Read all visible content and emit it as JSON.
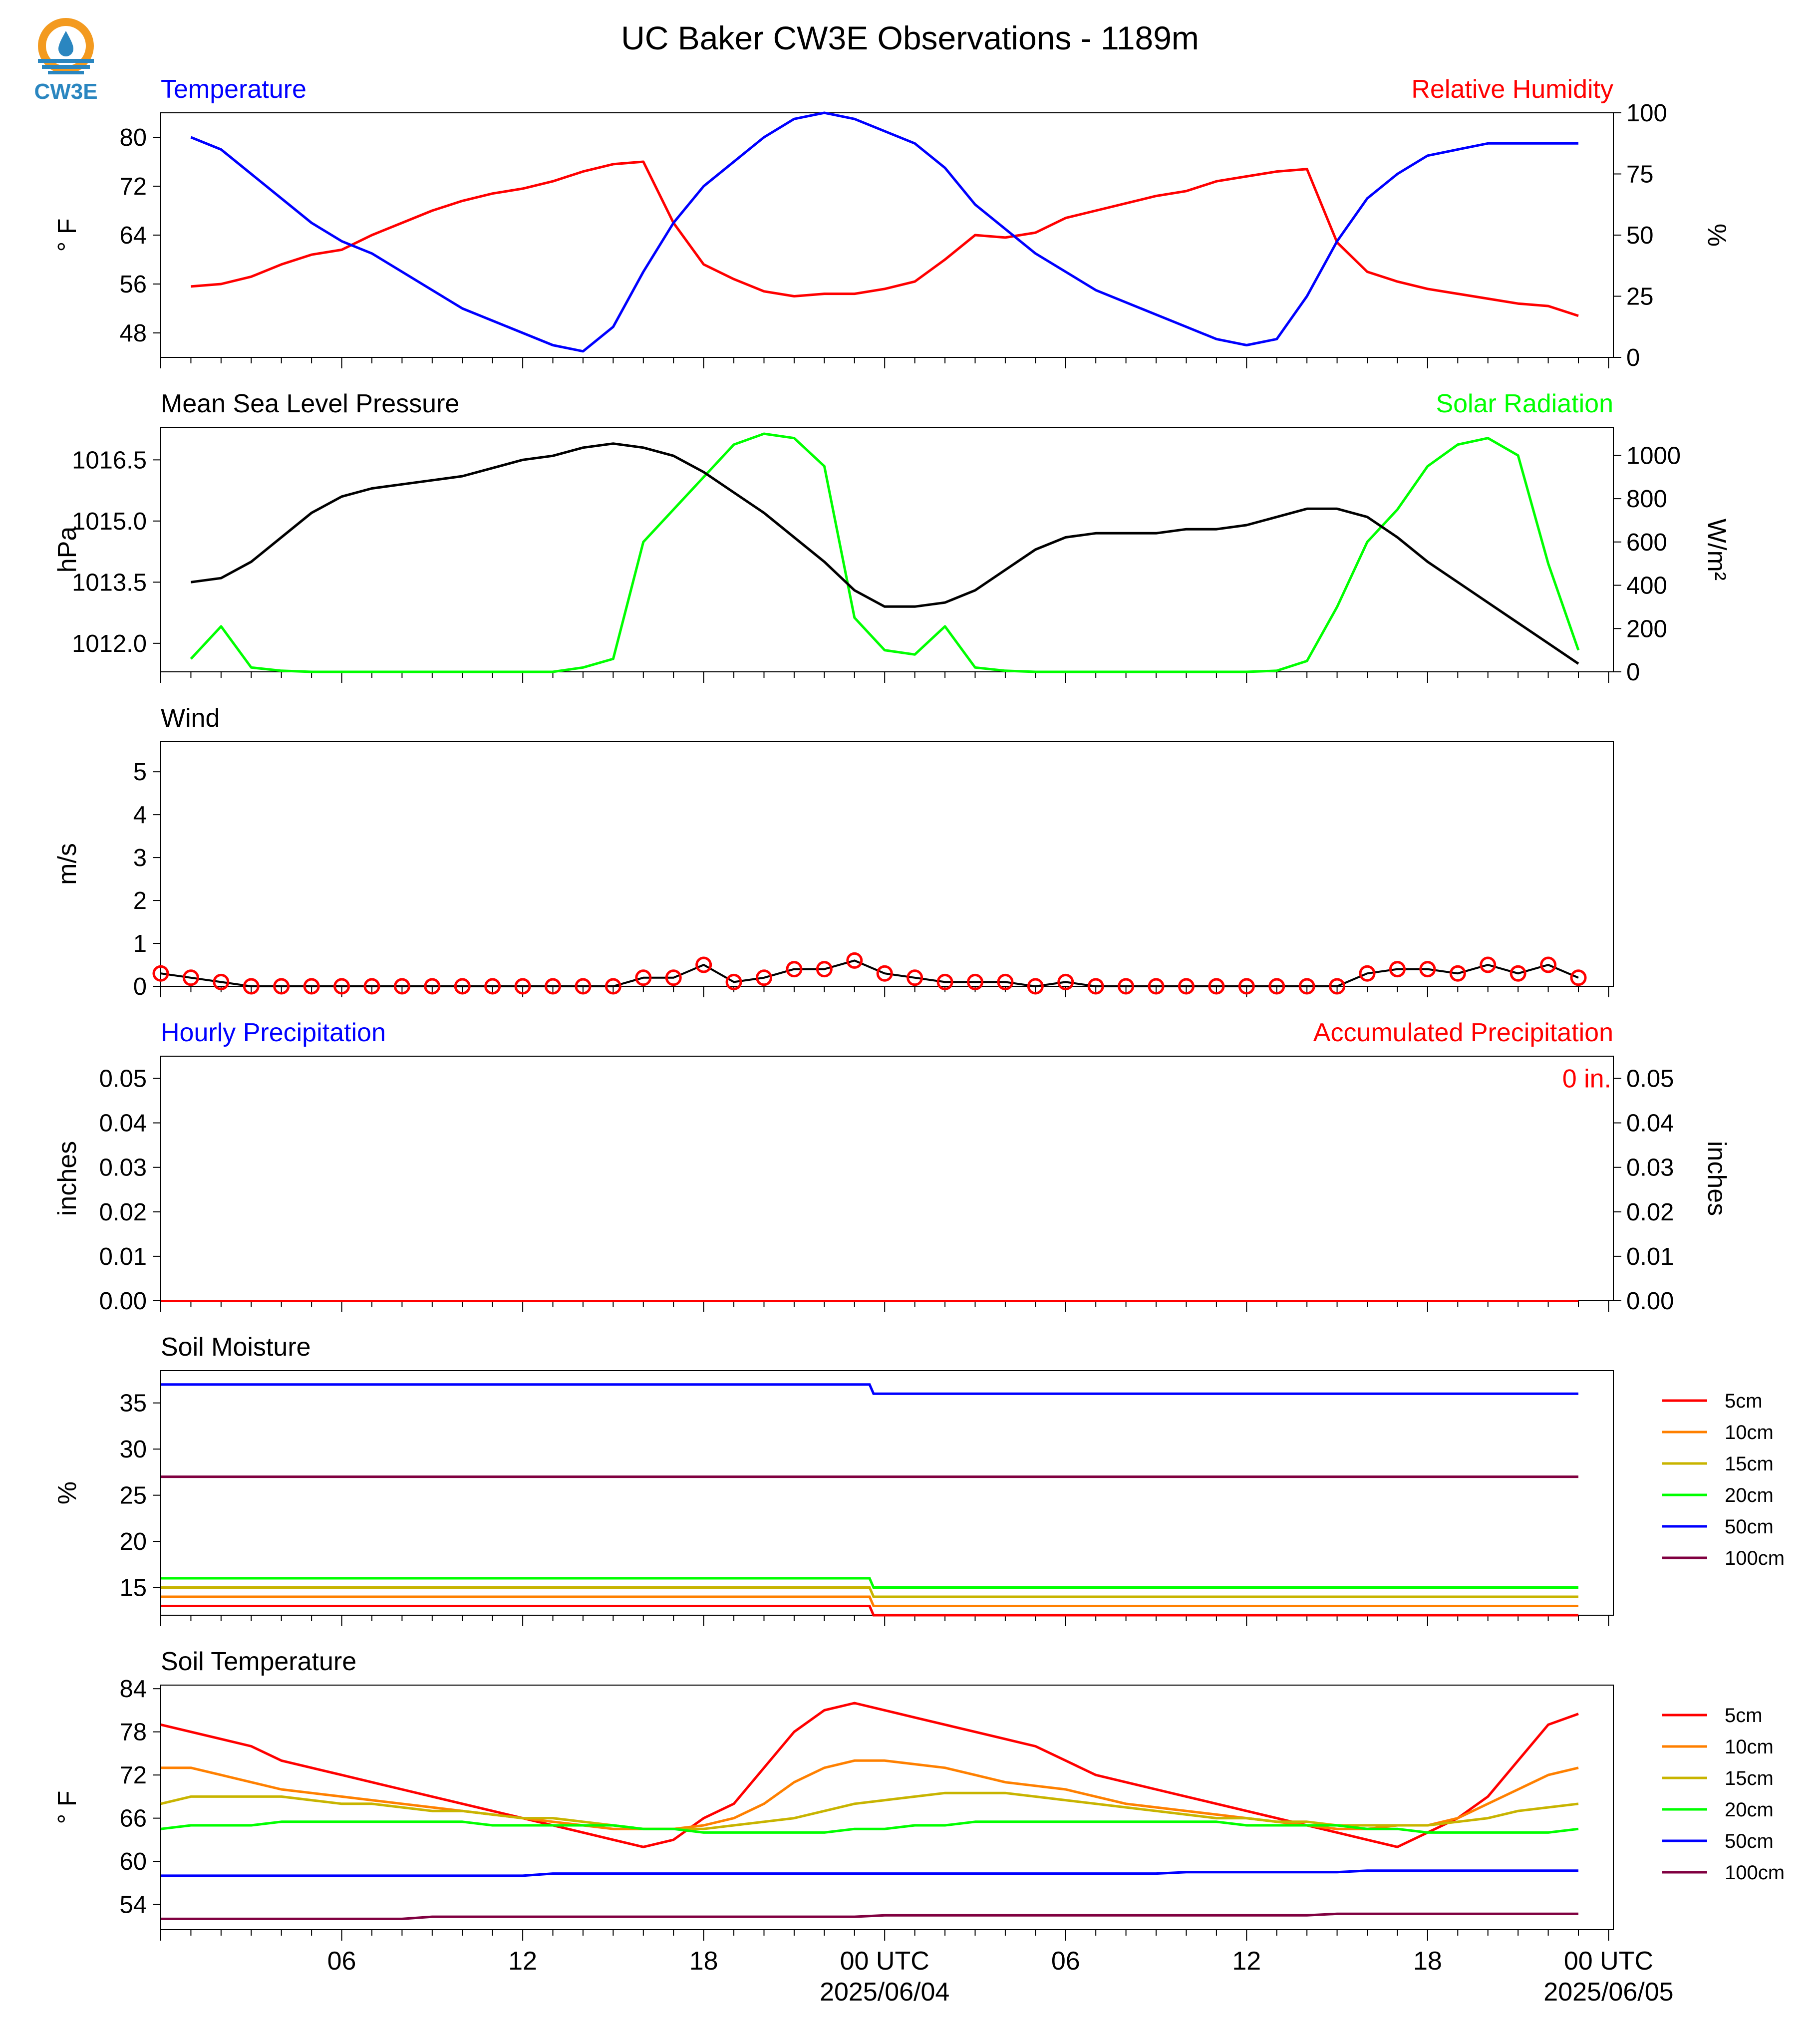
{
  "title": "UC Baker CW3E Observations - 1189m",
  "logo": {
    "text": "CW3E",
    "icon": "cw3e-water-drop-icon",
    "colors": [
      "#F39A1F",
      "#2A86C0"
    ]
  },
  "colors": {
    "temperature": "#0000FF",
    "relative_humidity": "#FF0000",
    "pressure": "#000000",
    "solar_radiation": "#00FF00",
    "wind_line": "#000000",
    "wind_markers": "#FF0000",
    "hourly_precip": "#0000FF",
    "accum_precip": "#FF0000",
    "depths": {
      "5cm": "#FF0000",
      "10cm": "#FF8000",
      "15cm": "#C8B400",
      "20cm": "#00FF00",
      "50cm": "#0000FF",
      "100cm": "#800040"
    }
  },
  "panels": {
    "temperature": {
      "left_title": "Temperature",
      "right_title": "Relative Humidity",
      "left_ylabel": "° F",
      "right_ylabel": "%",
      "left_ticks": [
        "48",
        "56",
        "64",
        "72",
        "80"
      ],
      "right_ticks": [
        "0",
        "25",
        "50",
        "75",
        "100"
      ]
    },
    "pressure": {
      "left_title": "Mean Sea Level Pressure",
      "right_title": "Solar Radiation",
      "left_ylabel": "hPa",
      "right_ylabel": "W/m²",
      "left_ticks": [
        "1012.0",
        "1013.5",
        "1015.0",
        "1016.5"
      ],
      "right_ticks": [
        "0",
        "200",
        "400",
        "600",
        "800",
        "1000"
      ]
    },
    "wind": {
      "left_title": "Wind",
      "left_ylabel": "m/s",
      "left_ticks": [
        "0",
        "1",
        "2",
        "3",
        "4",
        "5"
      ]
    },
    "precip": {
      "left_title": "Hourly Precipitation",
      "right_title": "Accumulated Precipitation",
      "left_ylabel": "inches",
      "right_ylabel": "inches",
      "annotation": "0 in.",
      "left_ticks": [
        "0.00",
        "0.01",
        "0.02",
        "0.03",
        "0.04",
        "0.05"
      ],
      "right_ticks": [
        "0.00",
        "0.01",
        "0.02",
        "0.03",
        "0.04",
        "0.05"
      ]
    },
    "soil_moisture": {
      "left_title": "Soil Moisture",
      "left_ylabel": "%",
      "left_ticks": [
        "15",
        "20",
        "25",
        "30",
        "35"
      ],
      "legend": [
        "5cm",
        "10cm",
        "15cm",
        "20cm",
        "50cm",
        "100cm"
      ]
    },
    "soil_temp": {
      "left_title": "Soil Temperature",
      "left_ylabel": "° F",
      "left_ticks": [
        "54",
        "60",
        "66",
        "72",
        "78",
        "84"
      ],
      "legend": [
        "5cm",
        "10cm",
        "15cm",
        "20cm",
        "50cm",
        "100cm"
      ]
    }
  },
  "x_axis": {
    "tick_labels": [
      "06",
      "12",
      "18",
      "00 UTC",
      "06",
      "12",
      "18",
      "00 UTC"
    ],
    "date_labels": [
      "2025/06/04",
      "2025/06/05"
    ]
  },
  "chart_data": [
    {
      "type": "line",
      "name": "temperature_rh",
      "x": [
        1,
        2,
        3,
        4,
        5,
        6,
        7,
        8,
        9,
        10,
        11,
        12,
        13,
        14,
        15,
        16,
        17,
        18,
        19,
        20,
        21,
        22,
        23,
        24,
        25,
        26,
        27,
        28,
        29,
        30,
        31,
        32,
        33,
        34,
        35,
        36,
        37,
        38,
        39,
        40,
        41,
        42,
        43,
        44,
        45,
        46,
        47
      ],
      "series": [
        {
          "name": "Temperature",
          "axis": "left",
          "values": [
            80,
            78,
            74,
            70,
            66,
            63,
            61,
            58,
            55,
            52,
            50,
            48,
            46,
            45,
            49,
            58,
            66,
            72,
            76,
            80,
            83,
            84,
            83,
            81,
            79,
            75,
            69,
            65,
            61,
            58,
            55,
            53,
            51,
            49,
            47,
            46,
            47,
            54,
            63,
            70,
            74,
            77,
            78,
            79,
            79,
            79,
            79
          ]
        },
        {
          "name": "Relative Humidity",
          "axis": "right",
          "values": [
            29,
            30,
            33,
            38,
            42,
            44,
            50,
            55,
            60,
            64,
            67,
            69,
            72,
            76,
            79,
            80,
            55,
            38,
            32,
            27,
            25,
            26,
            26,
            28,
            31,
            40,
            50,
            49,
            51,
            57,
            60,
            63,
            66,
            68,
            72,
            74,
            76,
            77,
            47,
            35,
            31,
            28,
            26,
            24,
            22,
            21,
            17
          ]
        }
      ],
      "ylim_left": [
        44,
        84
      ],
      "ylim_right": [
        0,
        100
      ]
    },
    {
      "type": "line",
      "name": "pressure_solar",
      "x": [
        1,
        2,
        3,
        4,
        5,
        6,
        7,
        8,
        9,
        10,
        11,
        12,
        13,
        14,
        15,
        16,
        17,
        18,
        19,
        20,
        21,
        22,
        23,
        24,
        25,
        26,
        27,
        28,
        29,
        30,
        31,
        32,
        33,
        34,
        35,
        36,
        37,
        38,
        39,
        40,
        41,
        42,
        43,
        44,
        45,
        46,
        47
      ],
      "series": [
        {
          "name": "Mean Sea Level Pressure",
          "axis": "left",
          "values": [
            1013.5,
            1013.6,
            1014.0,
            1014.6,
            1015.2,
            1015.6,
            1015.8,
            1015.9,
            1016.0,
            1016.1,
            1016.3,
            1016.5,
            1016.6,
            1016.8,
            1016.9,
            1016.8,
            1016.6,
            1016.2,
            1015.7,
            1015.2,
            1014.6,
            1014.0,
            1013.3,
            1012.9,
            1012.9,
            1013.0,
            1013.3,
            1013.8,
            1014.3,
            1014.6,
            1014.7,
            1014.7,
            1014.7,
            1014.8,
            1014.8,
            1014.9,
            1015.1,
            1015.3,
            1015.3,
            1015.1,
            1014.6,
            1014.0,
            1013.5,
            1013.0,
            1012.5,
            1012.0,
            1011.5
          ]
        },
        {
          "name": "Solar Radiation",
          "axis": "right",
          "values": [
            60,
            210,
            20,
            5,
            0,
            0,
            0,
            0,
            0,
            0,
            0,
            0,
            0,
            20,
            60,
            600,
            750,
            900,
            1050,
            1100,
            1080,
            950,
            250,
            100,
            80,
            210,
            20,
            5,
            0,
            0,
            0,
            0,
            0,
            0,
            0,
            0,
            5,
            50,
            300,
            600,
            750,
            950,
            1050,
            1080,
            1000,
            500,
            100
          ]
        }
      ],
      "ylim_left": [
        1011.3,
        1017.3
      ],
      "ylim_right": [
        0,
        1130
      ]
    },
    {
      "type": "line",
      "name": "wind",
      "x": [
        0,
        1,
        2,
        3,
        4,
        5,
        6,
        7,
        8,
        9,
        10,
        11,
        12,
        13,
        14,
        15,
        16,
        17,
        18,
        19,
        20,
        21,
        22,
        23,
        24,
        25,
        26,
        27,
        28,
        29,
        30,
        31,
        32,
        33,
        34,
        35,
        36,
        37,
        38,
        39,
        40,
        41,
        42,
        43,
        44,
        45,
        46,
        47
      ],
      "series": [
        {
          "name": "Wind",
          "axis": "left",
          "values": [
            0.3,
            0.2,
            0.1,
            0.0,
            0.0,
            0.0,
            0.0,
            0.0,
            0.0,
            0.0,
            0.0,
            0.0,
            0.0,
            0.0,
            0.0,
            0.0,
            0.2,
            0.2,
            0.5,
            0.1,
            0.2,
            0.4,
            0.4,
            0.6,
            0.3,
            0.2,
            0.1,
            0.1,
            0.1,
            0.0,
            0.1,
            0.0,
            0.0,
            0.0,
            0.0,
            0.0,
            0.0,
            0.0,
            0.0,
            0.0,
            0.3,
            0.4,
            0.4,
            0.3,
            0.5,
            0.3,
            0.5,
            0.2
          ]
        }
      ],
      "ylim": [
        0,
        5.7
      ]
    },
    {
      "type": "line",
      "name": "precipitation",
      "x": [
        0,
        47
      ],
      "series": [
        {
          "name": "Hourly Precipitation",
          "axis": "left",
          "values": [
            0,
            0
          ]
        },
        {
          "name": "Accumulated Precipitation",
          "axis": "right",
          "values": [
            0,
            0
          ]
        }
      ],
      "ylim": [
        0,
        0.055
      ]
    },
    {
      "type": "line",
      "name": "soil_moisture",
      "x": [
        0,
        47
      ],
      "series": [
        {
          "name": "5cm",
          "values": [
            13,
            12
          ]
        },
        {
          "name": "10cm",
          "values": [
            14,
            13
          ]
        },
        {
          "name": "15cm",
          "values": [
            15,
            14
          ]
        },
        {
          "name": "20cm",
          "values": [
            16,
            15
          ]
        },
        {
          "name": "50cm",
          "values": [
            37,
            36
          ]
        },
        {
          "name": "100cm",
          "values": [
            27,
            27
          ]
        }
      ],
      "ylim": [
        12,
        38.5
      ]
    },
    {
      "type": "line",
      "name": "soil_temperature",
      "x": [
        0,
        1,
        2,
        3,
        4,
        5,
        6,
        7,
        8,
        9,
        10,
        11,
        12,
        13,
        14,
        15,
        16,
        17,
        18,
        19,
        20,
        21,
        22,
        23,
        24,
        25,
        26,
        27,
        28,
        29,
        30,
        31,
        32,
        33,
        34,
        35,
        36,
        37,
        38,
        39,
        40,
        41,
        42,
        43,
        44,
        45,
        46,
        47
      ],
      "series": [
        {
          "name": "5cm",
          "values": [
            79,
            78,
            77,
            76,
            74,
            73,
            72,
            71,
            70,
            69,
            68,
            67,
            66,
            65,
            64,
            63,
            62,
            63,
            66,
            68,
            73,
            78,
            81,
            82,
            81,
            80,
            79,
            78,
            77,
            76,
            74,
            72,
            71,
            70,
            69,
            68,
            67,
            66,
            65,
            64,
            63,
            62,
            64,
            66,
            69,
            74,
            79,
            80.5
          ]
        },
        {
          "name": "10cm",
          "values": [
            73,
            73,
            72,
            71,
            70,
            69.5,
            69,
            68.5,
            68,
            67.5,
            67,
            66.5,
            66,
            65.5,
            65,
            64.5,
            64.5,
            64.5,
            65,
            66,
            68,
            71,
            73,
            74,
            74,
            73.5,
            73,
            72,
            71,
            70.5,
            70,
            69,
            68,
            67.5,
            67,
            66.5,
            66,
            65.5,
            65,
            64.5,
            64.5,
            65,
            65,
            66,
            68,
            70,
            72,
            73
          ]
        },
        {
          "name": "15cm",
          "values": [
            68,
            69,
            69,
            69,
            69,
            68.5,
            68,
            68,
            67.5,
            67,
            67,
            66.5,
            66,
            66,
            65.5,
            65,
            64.5,
            64.5,
            64.5,
            65,
            65.5,
            66,
            67,
            68,
            68.5,
            69,
            69.5,
            69.5,
            69.5,
            69,
            68.5,
            68,
            67.5,
            67,
            66.5,
            66,
            66,
            65.5,
            65.5,
            65,
            65,
            65,
            65,
            65.5,
            66,
            67,
            67.5,
            68
          ]
        },
        {
          "name": "20cm",
          "values": [
            64.5,
            65,
            65,
            65,
            65.5,
            65.5,
            65.5,
            65.5,
            65.5,
            65.5,
            65.5,
            65,
            65,
            65,
            65,
            65,
            64.5,
            64.5,
            64,
            64,
            64,
            64,
            64,
            64.5,
            64.5,
            65,
            65,
            65.5,
            65.5,
            65.5,
            65.5,
            65.5,
            65.5,
            65.5,
            65.5,
            65.5,
            65,
            65,
            65,
            65,
            64.5,
            64.5,
            64,
            64,
            64,
            64,
            64,
            64.5
          ]
        },
        {
          "name": "50cm",
          "values": [
            58,
            58,
            58,
            58,
            58,
            58,
            58,
            58,
            58,
            58,
            58,
            58,
            58,
            58.3,
            58.3,
            58.3,
            58.3,
            58.3,
            58.3,
            58.3,
            58.3,
            58.3,
            58.3,
            58.3,
            58.3,
            58.3,
            58.3,
            58.3,
            58.3,
            58.3,
            58.3,
            58.3,
            58.3,
            58.3,
            58.5,
            58.5,
            58.5,
            58.5,
            58.5,
            58.5,
            58.7,
            58.7,
            58.7,
            58.7,
            58.7,
            58.7,
            58.7,
            58.7
          ]
        },
        {
          "name": "100cm",
          "values": [
            52,
            52,
            52,
            52,
            52,
            52,
            52,
            52,
            52,
            52.3,
            52.3,
            52.3,
            52.3,
            52.3,
            52.3,
            52.3,
            52.3,
            52.3,
            52.3,
            52.3,
            52.3,
            52.3,
            52.3,
            52.3,
            52.5,
            52.5,
            52.5,
            52.5,
            52.5,
            52.5,
            52.5,
            52.5,
            52.5,
            52.5,
            52.5,
            52.5,
            52.5,
            52.5,
            52.5,
            52.7,
            52.7,
            52.7,
            52.7,
            52.7,
            52.7,
            52.7,
            52.7,
            52.7
          ]
        }
      ],
      "ylim": [
        50.5,
        84.5
      ]
    }
  ]
}
